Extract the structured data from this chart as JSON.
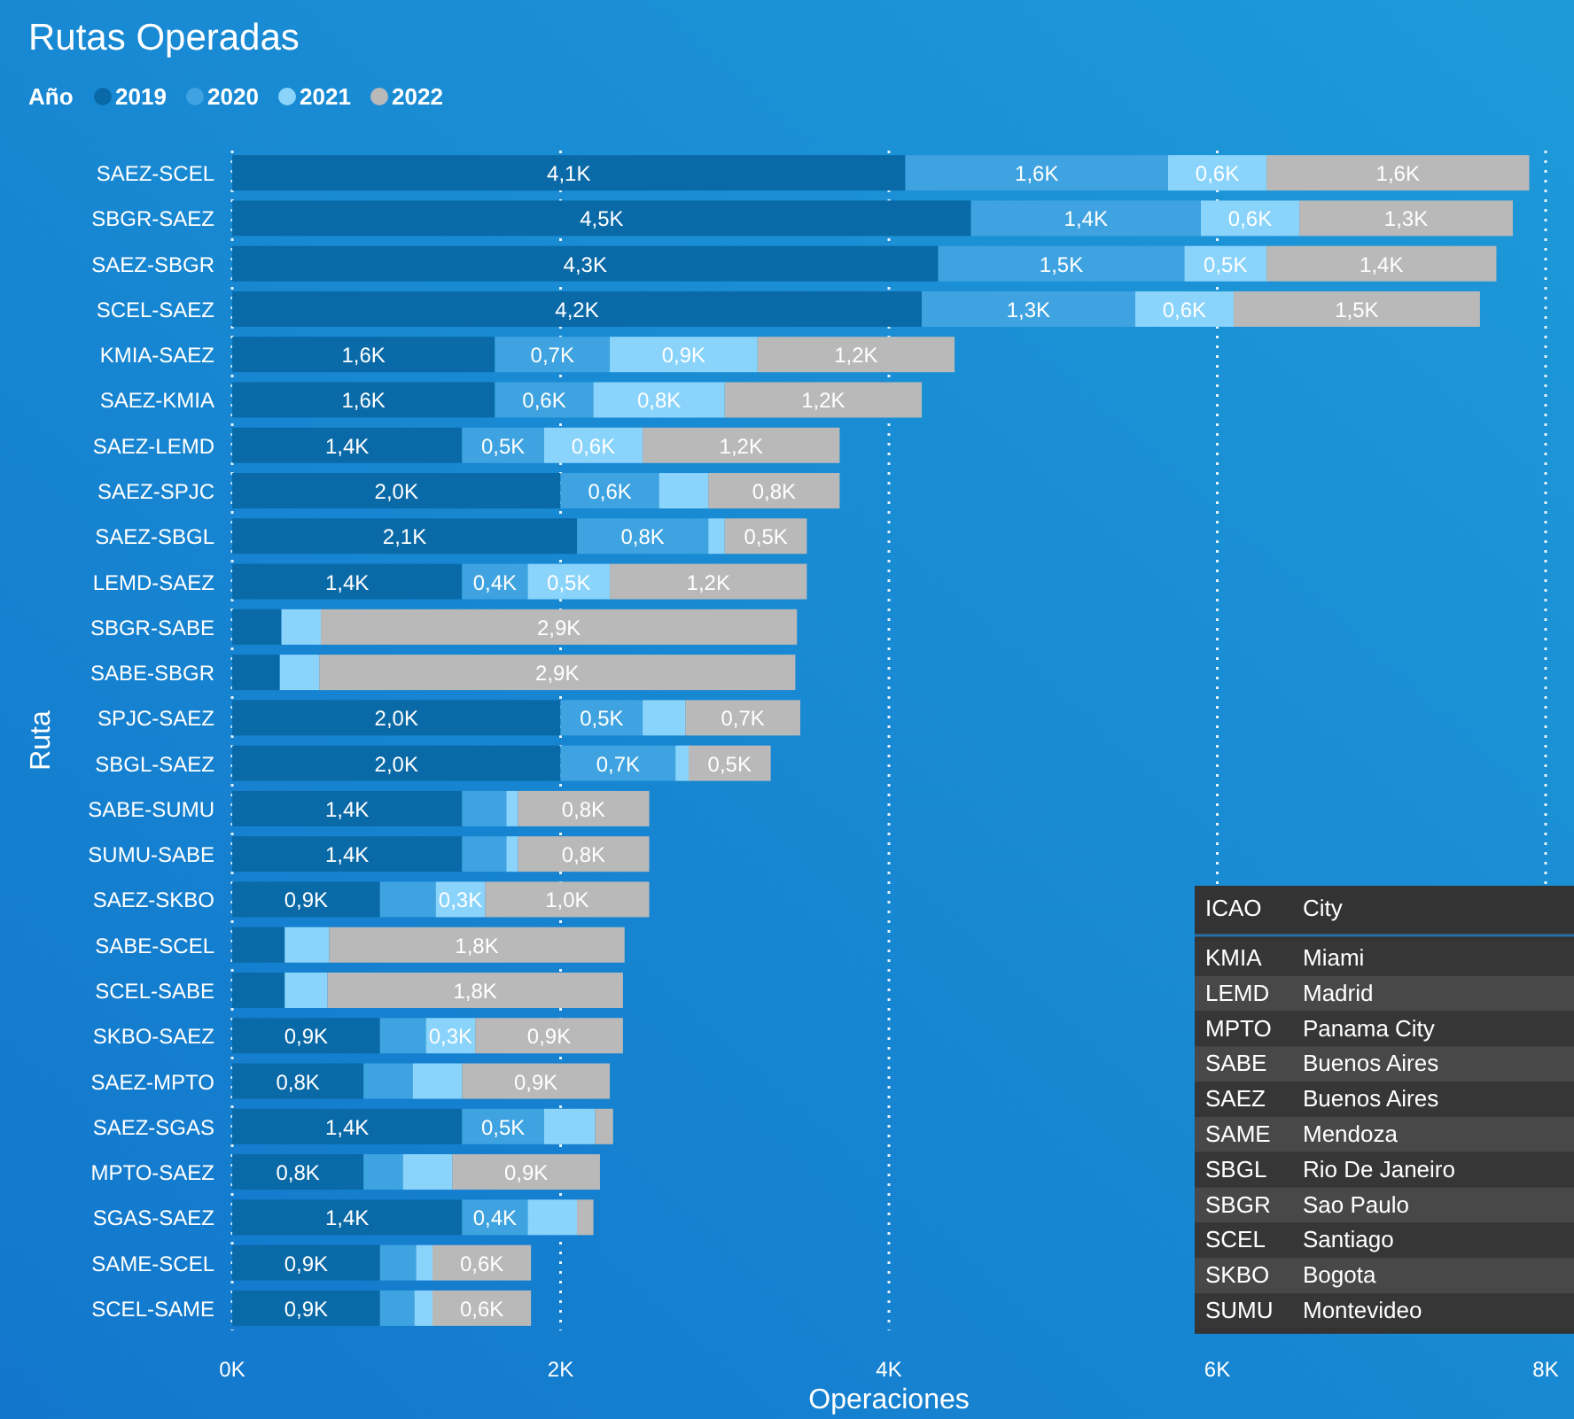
{
  "chart_data": [
    {
      "type": "bar",
      "title": "Rutas Operadas",
      "orientation": "horizontal",
      "stacked": true,
      "xlabel": "Operaciones",
      "ylabel": "Ruta",
      "legend_title": "Año",
      "legend": "top left",
      "grid": "x",
      "categories": [
        "SAEZ-SCEL",
        "SBGR-SAEZ",
        "SAEZ-SBGR",
        "SCEL-SAEZ",
        "KMIA-SAEZ",
        "SAEZ-KMIA",
        "SAEZ-LEMD",
        "SAEZ-SPJC",
        "SAEZ-SBGL",
        "LEMD-SAEZ",
        "SBGR-SABE",
        "SABE-SBGR",
        "SPJC-SAEZ",
        "SBGL-SAEZ",
        "SABE-SUMU",
        "SUMU-SABE",
        "SAEZ-SKBO",
        "SABE-SCEL",
        "SCEL-SABE",
        "SKBO-SAEZ",
        "SAEZ-MPTO",
        "SAEZ-SGAS",
        "MPTO-SAEZ",
        "SGAS-SAEZ",
        "SAME-SCEL",
        "SCEL-SAME"
      ],
      "xlim": [
        0,
        8
      ],
      "xticks": [
        {
          "value": 0,
          "label": "0K"
        },
        {
          "value": 2,
          "label": "2K"
        },
        {
          "value": 4,
          "label": "4K"
        },
        {
          "value": 6,
          "label": "6K"
        },
        {
          "value": 8,
          "label": "8K"
        }
      ],
      "series": [
        {
          "name": "2019",
          "color": "#0a6aa8",
          "values": [
            4.1,
            4.5,
            4.3,
            4.2,
            1.6,
            1.6,
            1.4,
            2.0,
            2.1,
            1.4,
            0.3,
            0.29,
            2.0,
            2.0,
            1.4,
            1.4,
            0.9,
            0.32,
            0.32,
            0.9,
            0.8,
            1.4,
            0.8,
            1.4,
            0.9,
            0.9
          ],
          "value_labels": [
            "4,1K",
            "4,5K",
            "4,3K",
            "4,2K",
            "1,6K",
            "1,6K",
            "1,4K",
            "2,0K",
            "2,1K",
            "1,4K",
            null,
            null,
            "2,0K",
            "2,0K",
            "1,4K",
            "1,4K",
            "0,9K",
            null,
            null,
            "0,9K",
            "0,8K",
            "1,4K",
            "0,8K",
            "1,4K",
            "0,9K",
            "0,9K"
          ]
        },
        {
          "name": "2020",
          "color": "#3ea3e0",
          "values": [
            1.6,
            1.4,
            1.5,
            1.3,
            0.7,
            0.6,
            0.5,
            0.6,
            0.8,
            0.4,
            null,
            null,
            0.5,
            0.7,
            0.27,
            0.27,
            0.34,
            null,
            null,
            0.28,
            0.3,
            0.5,
            0.24,
            0.4,
            0.22,
            0.21
          ],
          "value_labels": [
            "1,6K",
            "1,4K",
            "1,5K",
            "1,3K",
            "0,7K",
            "0,6K",
            "0,5K",
            "0,6K",
            "0,8K",
            "0,4K",
            null,
            null,
            "0,5K",
            "0,7K",
            null,
            null,
            null,
            null,
            null,
            null,
            null,
            "0,5K",
            null,
            "0,4K",
            null,
            null
          ]
        },
        {
          "name": "2021",
          "color": "#8ad4fb",
          "values": [
            0.6,
            0.6,
            0.5,
            0.6,
            0.9,
            0.8,
            0.6,
            0.3,
            0.1,
            0.5,
            0.24,
            0.24,
            0.26,
            0.08,
            0.07,
            0.07,
            0.3,
            0.27,
            0.26,
            0.3,
            0.3,
            0.31,
            0.3,
            0.3,
            0.1,
            0.11
          ],
          "value_labels": [
            "0,6K",
            "0,6K",
            "0,5K",
            "0,6K",
            "0,9K",
            "0,8K",
            "0,6K",
            null,
            null,
            "0,5K",
            null,
            null,
            null,
            null,
            null,
            null,
            "0,3K",
            null,
            null,
            "0,3K",
            null,
            null,
            null,
            null,
            null,
            null
          ]
        },
        {
          "name": "2022",
          "color": "#b9b9b9",
          "values": [
            1.6,
            1.3,
            1.4,
            1.5,
            1.2,
            1.2,
            1.2,
            0.8,
            0.5,
            1.2,
            2.9,
            2.9,
            0.7,
            0.5,
            0.8,
            0.8,
            1.0,
            1.8,
            1.8,
            0.9,
            0.9,
            0.11,
            0.9,
            0.1,
            0.6,
            0.6
          ],
          "value_labels": [
            "1,6K",
            "1,3K",
            "1,4K",
            "1,5K",
            "1,2K",
            "1,2K",
            "1,2K",
            "0,8K",
            "0,5K",
            "1,2K",
            "2,9K",
            "2,9K",
            "0,7K",
            "0,5K",
            "0,8K",
            "0,8K",
            "1,0K",
            "1,8K",
            "1,8K",
            "0,9K",
            "0,9K",
            null,
            "0,9K",
            null,
            "0,6K",
            "0,6K"
          ]
        }
      ]
    },
    {
      "type": "other",
      "annotations": [
        "ICAO",
        "City",
        "KMIA",
        "Miami",
        "LEMD",
        "Madrid",
        "MPTO",
        "Panama City",
        "SABE",
        "Buenos Aires",
        "SAEZ",
        "Buenos Aires",
        "SAME",
        "Mendoza",
        "SBGL",
        "Rio De Janeiro",
        "SBGR",
        "Sao Paulo",
        "SCEL",
        "Santiago",
        "SKBO",
        "Bogota",
        "SUMU",
        "Montevideo"
      ]
    }
  ]
}
